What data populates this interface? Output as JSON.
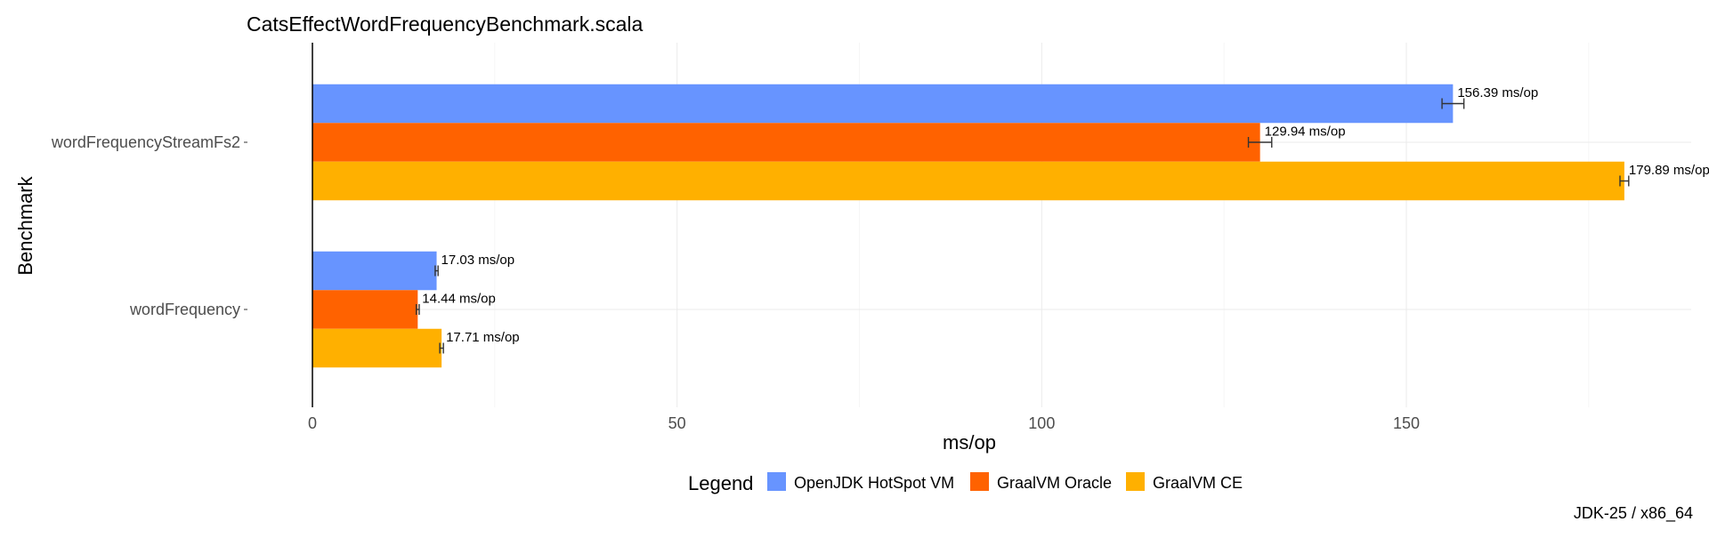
{
  "chart_data": {
    "type": "bar",
    "orientation": "horizontal",
    "title": "CatsEffectWordFrequencyBenchmark.scala",
    "xlabel": "ms/op",
    "ylabel": "Benchmark",
    "categories": [
      "wordFrequencyStreamFs2",
      "wordFrequency"
    ],
    "xlim": [
      0,
      189
    ],
    "xticks": [
      0,
      50,
      100,
      150
    ],
    "grid": true,
    "legend_title": "Legend",
    "legend_position": "bottom",
    "unit_suffix": " ms/op",
    "series": [
      {
        "name": "OpenJDK HotSpot VM",
        "color": "#6794FF",
        "values": [
          156.39,
          17.03
        ],
        "errors": [
          1.5,
          0.2
        ]
      },
      {
        "name": "GraalVM Oracle",
        "color": "#FF6200",
        "values": [
          129.94,
          14.44
        ],
        "errors": [
          1.6,
          0.2
        ]
      },
      {
        "name": "GraalVM CE",
        "color": "#FFB000",
        "values": [
          179.89,
          17.71
        ],
        "errors": [
          0.6,
          0.25
        ]
      }
    ],
    "caption": "JDK-25 / x86_64"
  }
}
